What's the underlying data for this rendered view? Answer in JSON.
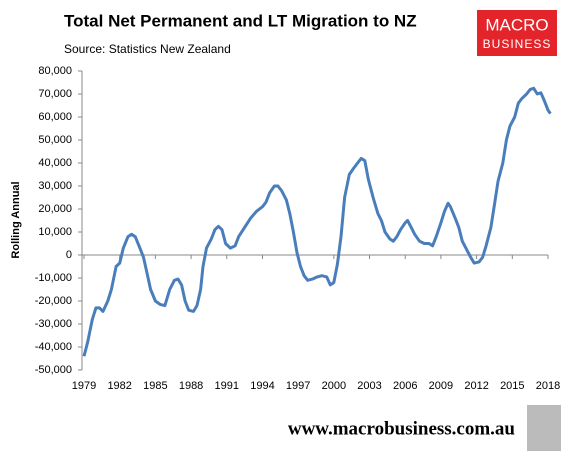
{
  "chart_data": {
    "type": "line",
    "title": "Total Net Permanent and LT Migration to NZ",
    "subtitle": "Source: Statistics New Zealand",
    "ylabel": "Rolling Annual",
    "logo": [
      "MACRO",
      "BUSINESS"
    ],
    "footer": "www.macrobusiness.com.au",
    "xlim": [
      1979,
      2018
    ],
    "xticks": [
      1979,
      1982,
      1985,
      1988,
      1991,
      1994,
      1997,
      2000,
      2003,
      2006,
      2009,
      2012,
      2015,
      2018
    ],
    "ylim": [
      -50000,
      80000
    ],
    "yticks": [
      {
        "value": -50000,
        "label": "-50,000"
      },
      {
        "value": -40000,
        "label": "-40,000"
      },
      {
        "value": -30000,
        "label": "-30,000"
      },
      {
        "value": -20000,
        "label": "-20,000"
      },
      {
        "value": -10000,
        "label": "-10,000"
      },
      0,
      {
        "value": 10000,
        "label": "10,000"
      },
      {
        "value": 20000,
        "label": "20,000"
      },
      {
        "value": 30000,
        "label": "30,000"
      },
      {
        "value": 40000,
        "label": "40,000"
      },
      {
        "value": 50000,
        "label": "50,000"
      },
      {
        "value": 60000,
        "label": "60,000"
      },
      {
        "value": 70000,
        "label": "70,000"
      },
      {
        "value": 80000,
        "label": "80,000"
      }
    ],
    "grid": false,
    "color": "#4a7ebb",
    "x": [
      1979.0,
      1979.3,
      1979.7,
      1980.0,
      1980.3,
      1980.6,
      1981.0,
      1981.3,
      1981.7,
      1982.0,
      1982.3,
      1982.7,
      1983.0,
      1983.3,
      1983.7,
      1984.0,
      1984.3,
      1984.6,
      1985.0,
      1985.4,
      1985.8,
      1986.2,
      1986.6,
      1986.9,
      1987.2,
      1987.5,
      1987.8,
      1988.2,
      1988.5,
      1988.8,
      1989.0,
      1989.3,
      1989.7,
      1990.0,
      1990.3,
      1990.6,
      1990.9,
      1991.3,
      1991.7,
      1992.0,
      1992.5,
      1993.0,
      1993.5,
      1994.0,
      1994.3,
      1994.6,
      1995.0,
      1995.3,
      1995.6,
      1996.0,
      1996.3,
      1996.6,
      1996.9,
      1997.2,
      1997.5,
      1997.8,
      1998.2,
      1998.6,
      1999.0,
      1999.4,
      1999.7,
      2000.0,
      2000.3,
      2000.6,
      2000.9,
      2001.3,
      2001.7,
      2002.0,
      2002.3,
      2002.6,
      2002.9,
      2003.3,
      2003.7,
      2004.0,
      2004.3,
      2004.7,
      2005.0,
      2005.3,
      2005.6,
      2006.0,
      2006.2,
      2006.5,
      2006.8,
      2007.2,
      2007.6,
      2008.0,
      2008.3,
      2008.6,
      2009.0,
      2009.3,
      2009.6,
      2009.8,
      2010.2,
      2010.5,
      2010.8,
      2011.2,
      2011.5,
      2011.8,
      2012.2,
      2012.5,
      2012.8,
      2013.2,
      2013.5,
      2013.8,
      2014.2,
      2014.5,
      2014.8,
      2015.2,
      2015.5,
      2015.8,
      2016.2,
      2016.5,
      2016.8,
      2017.1,
      2017.4,
      2017.7,
      2018.0,
      2018.2
    ],
    "values": [
      -44000,
      -38000,
      -28000,
      -23000,
      -23000,
      -24500,
      -20000,
      -15000,
      -5000,
      -3500,
      3000,
      8000,
      9000,
      8000,
      3000,
      -1000,
      -8000,
      -15000,
      -20000,
      -21500,
      -22000,
      -15000,
      -11000,
      -10500,
      -13000,
      -20000,
      -24000,
      -24500,
      -22000,
      -15000,
      -5000,
      3000,
      7000,
      11000,
      12500,
      11000,
      5000,
      3000,
      4000,
      8000,
      12000,
      16000,
      19000,
      21000,
      23000,
      27000,
      30000,
      30000,
      28000,
      24000,
      18000,
      10000,
      1000,
      -5000,
      -9000,
      -11000,
      -10500,
      -9500,
      -9000,
      -9500,
      -13000,
      -12000,
      -4000,
      8000,
      25000,
      35000,
      38000,
      40000,
      42000,
      41000,
      33000,
      25000,
      18000,
      15000,
      10000,
      7000,
      6000,
      8000,
      11000,
      14000,
      15000,
      12000,
      9000,
      6000,
      5000,
      5000,
      4000,
      8000,
      14000,
      19000,
      22500,
      21000,
      16000,
      12000,
      6000,
      2000,
      -1000,
      -3500,
      -3000,
      -1000,
      4000,
      12000,
      22000,
      32000,
      40000,
      50000,
      56000,
      60000,
      66000,
      68000,
      70000,
      72000,
      72500,
      70000,
      70500,
      67000,
      63000,
      61500
    ]
  }
}
